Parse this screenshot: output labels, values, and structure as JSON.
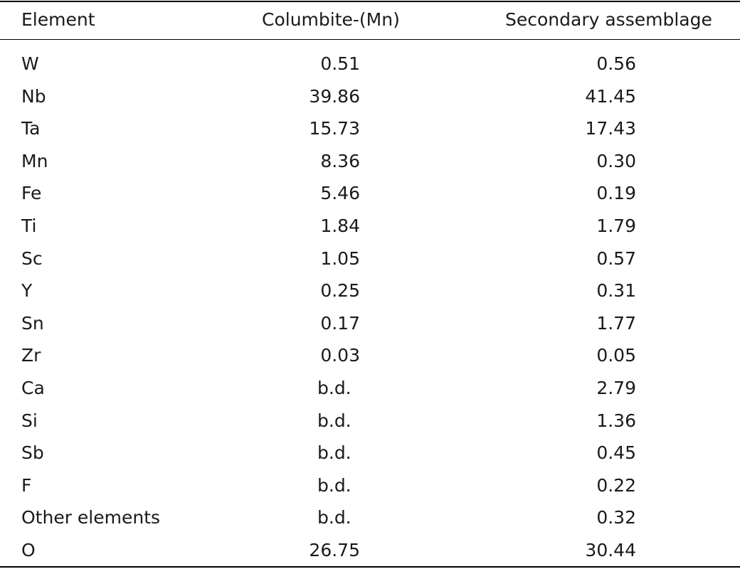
{
  "table": {
    "headers": {
      "element": "Element",
      "columbite": "Columbite-(Mn)",
      "secondary": "Secondary assemblage"
    },
    "rows": [
      {
        "element": "W",
        "columbite": "0.51",
        "secondary": "0.56"
      },
      {
        "element": "Nb",
        "columbite": "39.86",
        "secondary": "41.45"
      },
      {
        "element": "Ta",
        "columbite": "15.73",
        "secondary": "17.43"
      },
      {
        "element": "Mn",
        "columbite": "8.36",
        "secondary": "0.30"
      },
      {
        "element": "Fe",
        "columbite": "5.46",
        "secondary": "0.19"
      },
      {
        "element": "Ti",
        "columbite": "1.84",
        "secondary": "1.79"
      },
      {
        "element": "Sc",
        "columbite": "1.05",
        "secondary": "0.57"
      },
      {
        "element": "Y",
        "columbite": "0.25",
        "secondary": "0.31"
      },
      {
        "element": "Sn",
        "columbite": "0.17",
        "secondary": "1.77"
      },
      {
        "element": "Zr",
        "columbite": "0.03",
        "secondary": "0.05"
      },
      {
        "element": "Ca",
        "columbite": "b.d.",
        "secondary": "2.79"
      },
      {
        "element": "Si",
        "columbite": "b.d.",
        "secondary": "1.36"
      },
      {
        "element": "Sb",
        "columbite": "b.d.",
        "secondary": "0.45"
      },
      {
        "element": "F",
        "columbite": "b.d.",
        "secondary": "0.22"
      },
      {
        "element": "Other elements",
        "columbite": "b.d.",
        "secondary": "0.32"
      },
      {
        "element": "O",
        "columbite": "26.75",
        "secondary": "30.44"
      }
    ]
  }
}
